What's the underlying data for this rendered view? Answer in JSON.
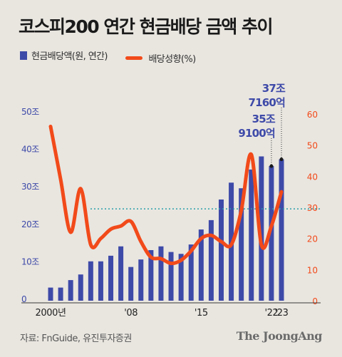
{
  "title": "코스피200 연간 현금배당 금액 추이",
  "legend": {
    "bar_label": "현금배당액(원, 연간)",
    "line_label": "배당성향(%)"
  },
  "colors": {
    "bar": "#3e4aa8",
    "line": "#f24a1a",
    "reference": "#2aa0a8",
    "left_axis": "#3e4aa8",
    "right_axis": "#f24a1a"
  },
  "source": "자료: FnGuide, 유진투자증권",
  "brand": "The JoongAng",
  "chart_data": {
    "type": "bar",
    "x": [
      2000,
      2001,
      2002,
      2003,
      2004,
      2005,
      2006,
      2007,
      2008,
      2009,
      2010,
      2011,
      2012,
      2013,
      2014,
      2015,
      2016,
      2017,
      2018,
      2019,
      2020,
      2021,
      2022,
      2023
    ],
    "x_tick_labels": [
      {
        "x": 2000,
        "label": "2000년"
      },
      {
        "x": 2008,
        "label": "'08"
      },
      {
        "x": 2015,
        "label": "'15"
      },
      {
        "x": 2022,
        "label": "'22"
      },
      {
        "x": 2023,
        "label": "'23"
      }
    ],
    "series": [
      {
        "name": "현금배당액(원, 연간)",
        "type": "bar",
        "axis": "left",
        "unit": "조",
        "values": [
          3.5,
          3.5,
          5.5,
          7.0,
          10.5,
          10.5,
          12.0,
          14.5,
          9.0,
          11.0,
          13.5,
          14.5,
          13.0,
          12.5,
          15.0,
          19.0,
          21.5,
          27.0,
          31.5,
          30.0,
          35.0,
          38.5,
          35.91,
          37.716
        ]
      },
      {
        "name": "배당성향(%)",
        "type": "line",
        "axis": "right",
        "values": [
          56,
          39,
          22,
          36,
          18,
          20,
          23,
          24,
          25.5,
          19,
          14,
          13.5,
          12,
          13,
          16,
          20,
          21,
          19,
          18,
          29,
          47,
          18,
          24,
          35
        ]
      }
    ],
    "left_axis": {
      "min": 0,
      "max": 50,
      "ticks": [
        {
          "value": 0,
          "label": "0"
        },
        {
          "value": 10,
          "label": "10조"
        },
        {
          "value": 20,
          "label": "20조"
        },
        {
          "value": 30,
          "label": "30조"
        },
        {
          "value": 40,
          "label": "40조"
        },
        {
          "value": 50,
          "label": "50조"
        }
      ]
    },
    "right_axis": {
      "min": 0,
      "max": 60,
      "ticks": [
        {
          "value": 0,
          "label": "0"
        },
        {
          "value": 10,
          "label": "10"
        },
        {
          "value": 20,
          "label": "20"
        },
        {
          "value": 30,
          "label": "30"
        },
        {
          "value": 40,
          "label": "40"
        },
        {
          "value": 50,
          "label": "50"
        },
        {
          "value": 60,
          "label": "60"
        }
      ]
    },
    "reference_line": {
      "axis": "right",
      "value": 29.5,
      "style": "dotted"
    },
    "annotations": [
      {
        "x": 2022,
        "lines": [
          "35조",
          "9100억"
        ]
      },
      {
        "x": 2023,
        "lines": [
          "37조",
          "7160억"
        ]
      }
    ],
    "grid": false
  }
}
